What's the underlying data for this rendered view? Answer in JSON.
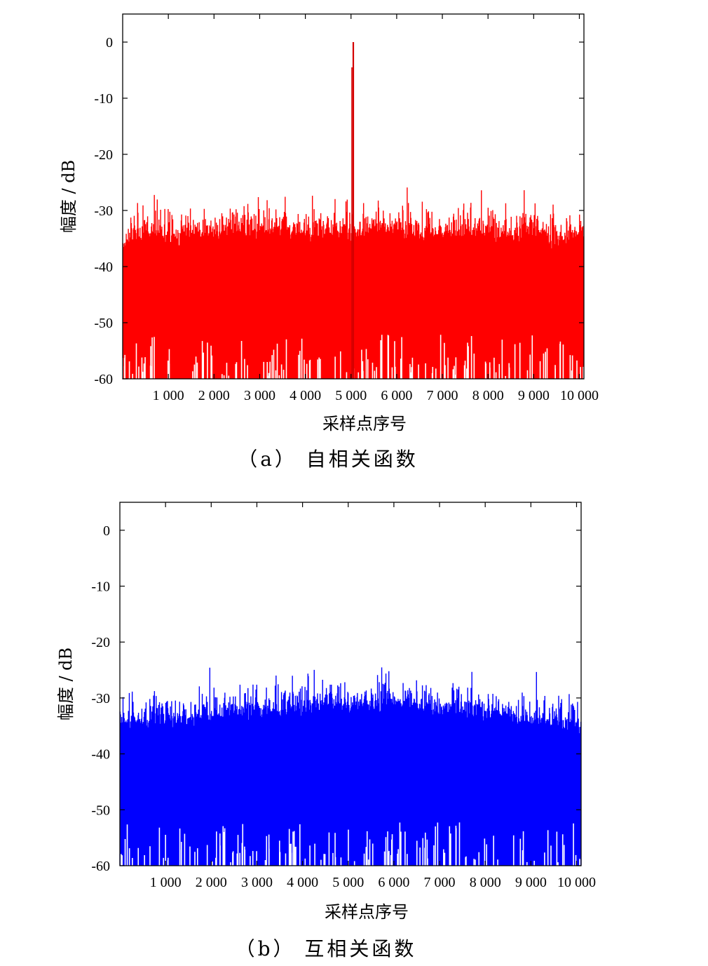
{
  "chart_data": [
    {
      "type": "bar",
      "caption": "（a） 自相关函数",
      "xlabel": "采样点序号",
      "ylabel": "幅度 / dB",
      "xlim": [
        0,
        10100
      ],
      "ylim": [
        -60,
        5
      ],
      "x_ticks": [
        1000,
        2000,
        3000,
        4000,
        5000,
        6000,
        7000,
        8000,
        9000,
        10000
      ],
      "x_tick_labels": [
        "1 000",
        "2 000",
        "3 000",
        "4 000",
        "5 000",
        "6 000",
        "7 000",
        "8 000",
        "9 000",
        "10 000"
      ],
      "y_ticks": [
        0,
        -10,
        -20,
        -30,
        -40,
        -50,
        -60
      ],
      "y_tick_labels": [
        "0",
        "-10",
        "-20",
        "-30",
        "-40",
        "-50",
        "-60"
      ],
      "color": "#ff0000",
      "series": [
        {
          "values_description_x": [
            0,
            500,
            1000,
            1500,
            2000,
            2500,
            3000,
            3500,
            4000,
            4500,
            5000,
            5050,
            5100,
            5500,
            6000,
            6500,
            7000,
            7500,
            8000,
            8500,
            9000,
            9500,
            10000,
            10100
          ],
          "noise_floor_db": [
            -35,
            -33,
            -34,
            -33,
            -33,
            -32,
            -33,
            -32,
            -33,
            -33,
            -33,
            -33,
            -33,
            -32,
            -32,
            -33,
            -33,
            -33,
            -33,
            -33,
            -33,
            -34,
            -34,
            -35
          ],
          "peak_x": 5050,
          "peak_db": 0
        }
      ],
      "grid": false
    },
    {
      "type": "bar",
      "caption": "（b） 互相关函数",
      "xlabel": "采样点序号",
      "ylabel": "幅度 / dB",
      "xlim": [
        0,
        10100
      ],
      "ylim": [
        -60,
        5
      ],
      "x_ticks": [
        1000,
        2000,
        3000,
        4000,
        5000,
        6000,
        7000,
        8000,
        9000,
        10000
      ],
      "x_tick_labels": [
        "1 000",
        "2 000",
        "3 000",
        "4 000",
        "5 000",
        "6 000",
        "7 000",
        "8 000",
        "9 000",
        "10 000"
      ],
      "y_ticks": [
        0,
        -10,
        -20,
        -30,
        -40,
        -50,
        -60
      ],
      "y_tick_labels": [
        "0",
        "-10",
        "-20",
        "-30",
        "-40",
        "-50",
        "-60"
      ],
      "color": "#0000ff",
      "series": [
        {
          "values_description_x": [
            0,
            500,
            1000,
            1500,
            2000,
            2500,
            3000,
            3500,
            4000,
            4500,
            5000,
            5500,
            6000,
            6500,
            7000,
            7500,
            8000,
            8500,
            9000,
            9500,
            10000,
            10100
          ],
          "noise_floor_db": [
            -34,
            -33,
            -33,
            -33,
            -32,
            -32,
            -31,
            -31,
            -31,
            -30,
            -30,
            -30,
            -30,
            -30,
            -31,
            -31,
            -32,
            -32,
            -33,
            -33,
            -34,
            -34
          ]
        }
      ],
      "grid": false
    }
  ]
}
